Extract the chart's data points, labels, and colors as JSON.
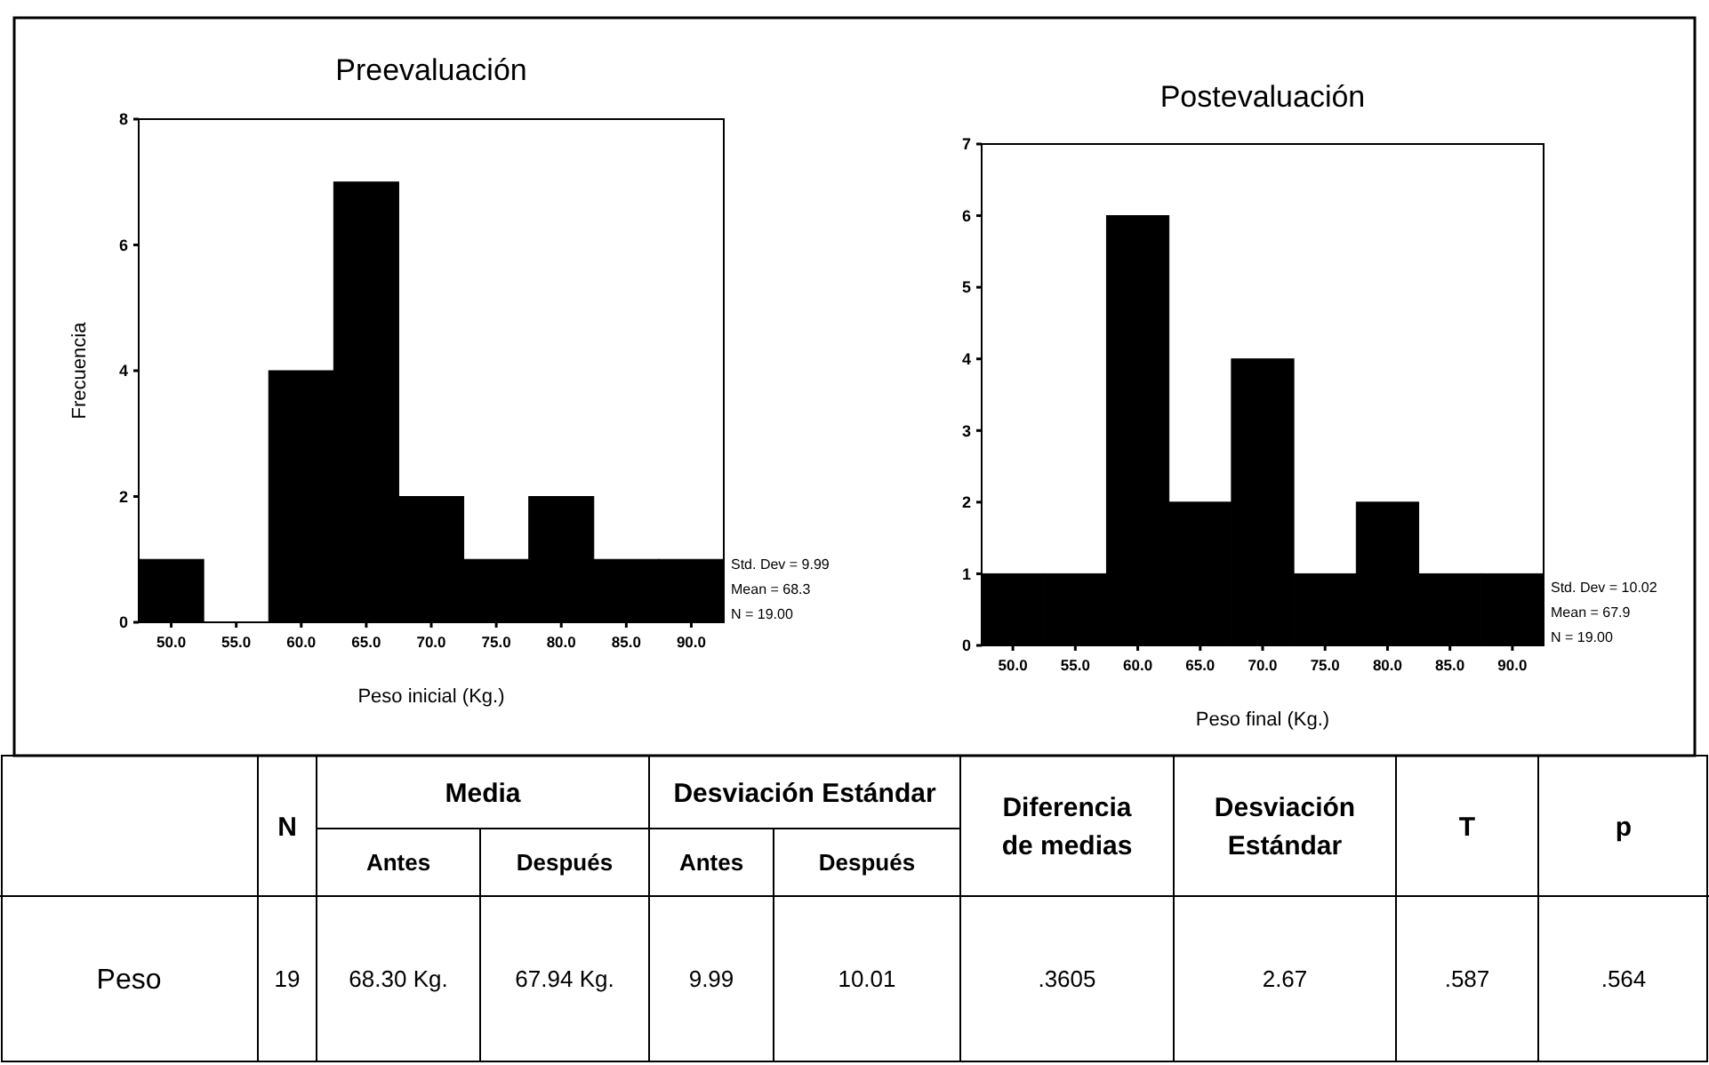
{
  "chart_data": [
    {
      "type": "histogram",
      "title": "Preevaluación",
      "xlabel": "Peso inicial (Kg.)",
      "ylabel": "Frecuencia",
      "color": "#000000",
      "bins": [
        47.5,
        52.5,
        57.5,
        62.5,
        67.5,
        72.5,
        77.5,
        82.5,
        87.5,
        92.5
      ],
      "values": [
        1,
        0,
        4,
        7,
        2,
        1,
        2,
        1,
        1
      ],
      "xlim": [
        47.5,
        92.5
      ],
      "xticks": [
        {
          "value": 50,
          "label": "50.0"
        },
        {
          "value": 55,
          "label": "55.0"
        },
        {
          "value": 60,
          "label": "60.0"
        },
        {
          "value": 65,
          "label": "65.0"
        },
        {
          "value": 70,
          "label": "70.0"
        },
        {
          "value": 75,
          "label": "75.0"
        },
        {
          "value": 80,
          "label": "80.0"
        },
        {
          "value": 85,
          "label": "85.0"
        },
        {
          "value": 90,
          "label": "90.0"
        }
      ],
      "ylim": [
        0,
        8
      ],
      "yticks": [
        0,
        2,
        4,
        6,
        8
      ],
      "annotations": [
        "Std. Dev = 9.99",
        "Mean = 68.3",
        "N = 19.00"
      ]
    },
    {
      "type": "histogram",
      "title": "Postevaluación",
      "xlabel": "Peso final (Kg.)",
      "color": "#000000",
      "bins": [
        47.5,
        52.5,
        57.5,
        62.5,
        67.5,
        72.5,
        77.5,
        82.5,
        87.5,
        92.5
      ],
      "values": [
        1,
        1,
        6,
        2,
        4,
        1,
        2,
        1,
        1
      ],
      "xlim": [
        47.5,
        92.5
      ],
      "xticks": [
        {
          "value": 50,
          "label": "50.0"
        },
        {
          "value": 55,
          "label": "55.0"
        },
        {
          "value": 60,
          "label": "60.0"
        },
        {
          "value": 65,
          "label": "65.0"
        },
        {
          "value": 70,
          "label": "70.0"
        },
        {
          "value": 75,
          "label": "75.0"
        },
        {
          "value": 80,
          "label": "80.0"
        },
        {
          "value": 85,
          "label": "85.0"
        },
        {
          "value": 90,
          "label": "90.0"
        }
      ],
      "ylim": [
        0,
        7
      ],
      "yticks": [
        0,
        1,
        2,
        3,
        4,
        5,
        6,
        7
      ],
      "annotations": [
        "Std. Dev = 10.02",
        "Mean = 67.9",
        "N = 19.00"
      ]
    },
    {
      "type": "other",
      "annotations": [
        "N",
        "Media",
        "Antes",
        "Después",
        "Desviación Estándar",
        "Antes",
        "Después",
        "Diferencia de medias",
        "Desviación Estándar",
        "T",
        "p",
        "Peso",
        "19",
        "68.30 Kg.",
        "67.94 Kg.",
        "9.99",
        "10.01",
        ".3605",
        "2.67",
        ".587",
        ".564"
      ]
    }
  ]
}
